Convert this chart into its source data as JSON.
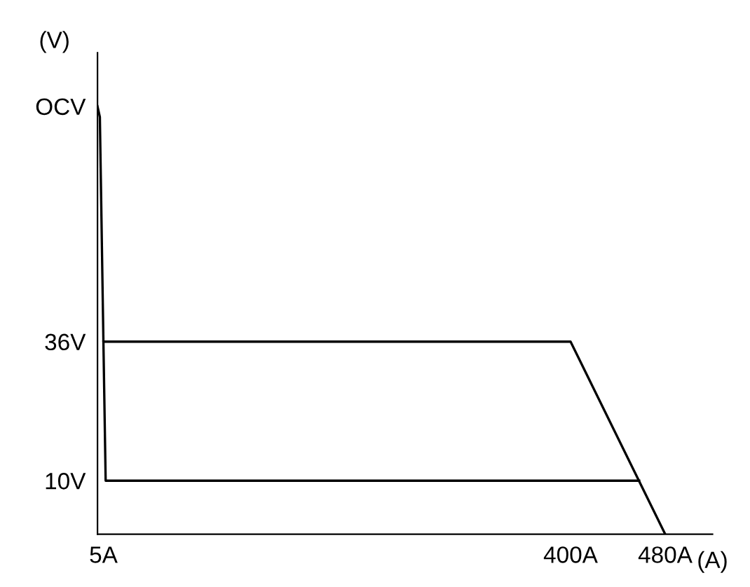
{
  "chart_data": {
    "type": "line",
    "xlabel": "(A)",
    "ylabel": "(V)",
    "series": [
      {
        "color": "#000000",
        "x": [
          0,
          2,
          5,
          400,
          480
        ],
        "values": [
          80,
          78,
          36,
          36,
          0
        ]
      },
      {
        "color": "#000000",
        "x": [
          5,
          6.9,
          458
        ],
        "values": [
          36,
          10,
          10
        ]
      }
    ],
    "xlim": [
      0,
      520
    ],
    "ylim": [
      0,
      90
    ],
    "xticks": [
      {
        "value": 5,
        "label": "5A"
      },
      {
        "value": 400,
        "label": "400A"
      },
      {
        "value": 480,
        "label": "480A"
      }
    ],
    "yticks": [
      {
        "value": 10,
        "label": "10V"
      },
      {
        "value": 36,
        "label": "36V"
      },
      {
        "value": 80,
        "label": "OCV"
      }
    ],
    "grid": false,
    "legend": false,
    "marker": "none",
    "line_style": "solid"
  }
}
